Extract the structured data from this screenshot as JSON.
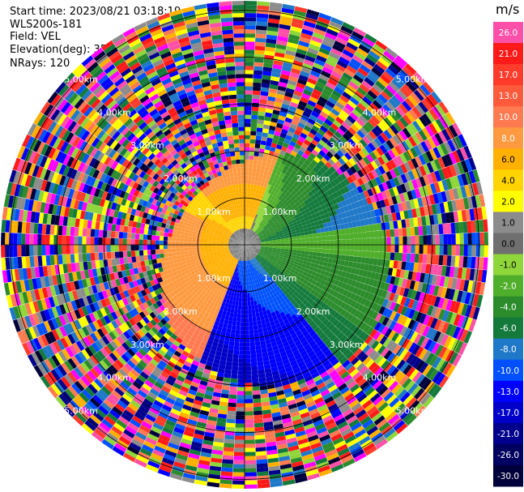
{
  "header": {
    "start_time": "Start time: 2023/08/21 03:18:19",
    "instrument": "WLS200s-181",
    "field": "Field: VEL",
    "elevation": "Elevation(deg): 35.30",
    "nrays": "NRays: 120"
  },
  "chart_data": {
    "type": "heatmap",
    "projection": "polar-ppi",
    "field": "VEL",
    "units": "m/s",
    "n_rays": 120,
    "elevation_deg": 35.3,
    "range_rings": [
      {
        "range_km": 1.0,
        "label": "1.00km"
      },
      {
        "range_km": 2.0,
        "label": "2.00km"
      },
      {
        "range_km": 3.0,
        "label": "3.00km"
      },
      {
        "range_km": 4.0,
        "label": "4.00km"
      },
      {
        "range_km": 5.0,
        "label": "5.00km"
      }
    ],
    "max_range_km": 5.2,
    "colorbar": {
      "unit_label": "m/s",
      "levels": [
        {
          "label": "26.0",
          "color": "#ff4fa8"
        },
        {
          "label": "21.0",
          "color": "#ff1a1a"
        },
        {
          "label": "17.0",
          "color": "#ff3b2b"
        },
        {
          "label": "13.0",
          "color": "#ff5a3c"
        },
        {
          "label": "10.0",
          "color": "#ff7a50"
        },
        {
          "label": "8.0",
          "color": "#ff9a40"
        },
        {
          "label": "6.0",
          "color": "#ffb000"
        },
        {
          "label": "4.0",
          "color": "#ffd400"
        },
        {
          "label": "2.0",
          "color": "#ffff00"
        },
        {
          "label": "1.0",
          "color": "#8c8c8c"
        },
        {
          "label": "0.0",
          "color": "#6f6f6f"
        },
        {
          "label": "-1.0",
          "color": "#8fd63a"
        },
        {
          "label": "-2.0",
          "color": "#4fae2a"
        },
        {
          "label": "-4.0",
          "color": "#2c8c2c"
        },
        {
          "label": "-6.0",
          "color": "#147a3c"
        },
        {
          "label": "-8.0",
          "color": "#1f78c8"
        },
        {
          "label": "-10.0",
          "color": "#0050ff"
        },
        {
          "label": "-13.0",
          "color": "#0000ff"
        },
        {
          "label": "-17.0",
          "color": "#0000c8"
        },
        {
          "label": "-21.0",
          "color": "#00008c"
        },
        {
          "label": "-26.0",
          "color": "#000060"
        },
        {
          "label": "-30.0",
          "color": "#00003a"
        }
      ]
    }
  }
}
